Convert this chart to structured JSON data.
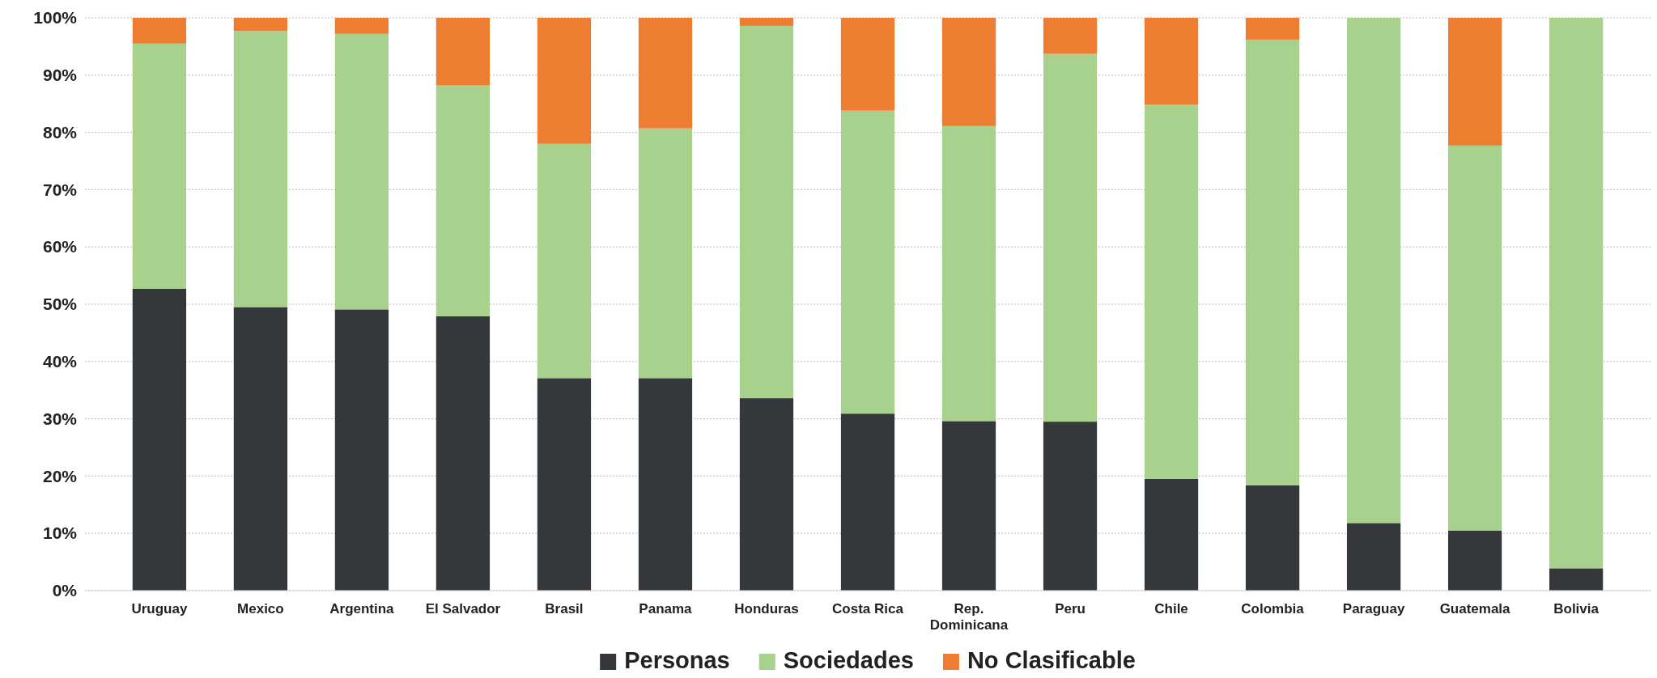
{
  "chart_data": {
    "type": "bar",
    "stacked": true,
    "categories": [
      "Uruguay",
      "Mexico",
      "Argentina",
      "El Salvador",
      "Brasil",
      "Panama",
      "Honduras",
      "Costa Rica",
      "Rep. Dominicana",
      "Peru",
      "Chile",
      "Colombia",
      "Paraguay",
      "Guatemala",
      "Bolivia"
    ],
    "series": [
      {
        "name": "Personas",
        "color": "#35383b",
        "values": [
          52.7,
          49.5,
          49.1,
          47.9,
          37.1,
          37.1,
          33.6,
          30.9,
          29.6,
          29.5,
          19.5,
          18.4,
          11.8,
          10.5,
          3.9
        ]
      },
      {
        "name": "Sociedades",
        "color": "#a9d18e",
        "values": [
          42.8,
          48.2,
          48.1,
          40.3,
          40.9,
          43.6,
          65.0,
          52.9,
          51.5,
          64.2,
          65.3,
          77.8,
          88.2,
          67.2,
          96.1
        ]
      },
      {
        "name": "No Clasificable",
        "color": "#ed7d31",
        "values": [
          4.5,
          2.3,
          2.8,
          11.8,
          22.0,
          19.3,
          1.4,
          16.2,
          18.9,
          6.3,
          15.2,
          3.8,
          0,
          22.3,
          0
        ]
      }
    ],
    "ylim": [
      0,
      100
    ],
    "yticks": [
      {
        "value": 0,
        "label": "0%"
      },
      {
        "value": 10,
        "label": "10%"
      },
      {
        "value": 20,
        "label": "20%"
      },
      {
        "value": 30,
        "label": "30%"
      },
      {
        "value": 40,
        "label": "40%"
      },
      {
        "value": 50,
        "label": "50%"
      },
      {
        "value": 60,
        "label": "60%"
      },
      {
        "value": 70,
        "label": "70%"
      },
      {
        "value": 80,
        "label": "80%"
      },
      {
        "value": 90,
        "label": "90%"
      },
      {
        "value": 100,
        "label": "100%"
      }
    ],
    "grid": "y",
    "legend": "bottom"
  }
}
